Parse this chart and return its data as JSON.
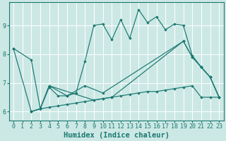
{
  "bg_color": "#cce8e5",
  "grid_color": "#b0d8d4",
  "line_color": "#1a7870",
  "xlabel": "Humidex (Indice chaleur)",
  "xlabel_fontsize": 7.5,
  "tick_fontsize": 6,
  "xlim": [
    -0.5,
    23.5
  ],
  "ylim": [
    5.7,
    9.8
  ],
  "yticks": [
    6,
    7,
    8,
    9
  ],
  "xticks": [
    0,
    1,
    2,
    3,
    4,
    5,
    6,
    7,
    8,
    9,
    10,
    11,
    12,
    13,
    14,
    15,
    16,
    17,
    18,
    19,
    20,
    21,
    22,
    23
  ],
  "series": [
    {
      "x": [
        0,
        2,
        3,
        4,
        5,
        6,
        7,
        8,
        9,
        10,
        11,
        12,
        13,
        14,
        15,
        16,
        17,
        18,
        19,
        20,
        21,
        22,
        23
      ],
      "y": [
        8.2,
        7.8,
        6.1,
        6.85,
        6.55,
        6.55,
        6.65,
        7.75,
        9.0,
        9.05,
        8.5,
        9.2,
        8.55,
        9.55,
        9.1,
        9.3,
        8.85,
        9.05,
        9.0,
        7.95,
        7.55,
        7.2,
        6.5
      ]
    },
    {
      "x": [
        2,
        3,
        4,
        5,
        6,
        7,
        8,
        9,
        10,
        11,
        12,
        13,
        14,
        15,
        16,
        17,
        18,
        19,
        20,
        21,
        22,
        23
      ],
      "y": [
        6.0,
        6.1,
        6.15,
        6.2,
        6.25,
        6.3,
        6.35,
        6.4,
        6.45,
        6.5,
        6.55,
        6.6,
        6.65,
        6.7,
        6.7,
        6.75,
        6.8,
        6.85,
        6.9,
        6.5,
        6.5,
        6.5
      ]
    },
    {
      "x": [
        2,
        3,
        4,
        6,
        8,
        10,
        19,
        20,
        21,
        22,
        23
      ],
      "y": [
        6.0,
        6.1,
        6.9,
        6.55,
        6.9,
        6.65,
        8.45,
        7.9,
        7.55,
        7.2,
        6.5
      ]
    },
    {
      "x": [
        0,
        2,
        3,
        4,
        9,
        10,
        11,
        19,
        20,
        21,
        22,
        23
      ],
      "y": [
        8.2,
        6.0,
        6.1,
        6.9,
        6.4,
        6.45,
        6.5,
        8.45,
        7.9,
        7.55,
        7.2,
        6.5
      ]
    }
  ]
}
